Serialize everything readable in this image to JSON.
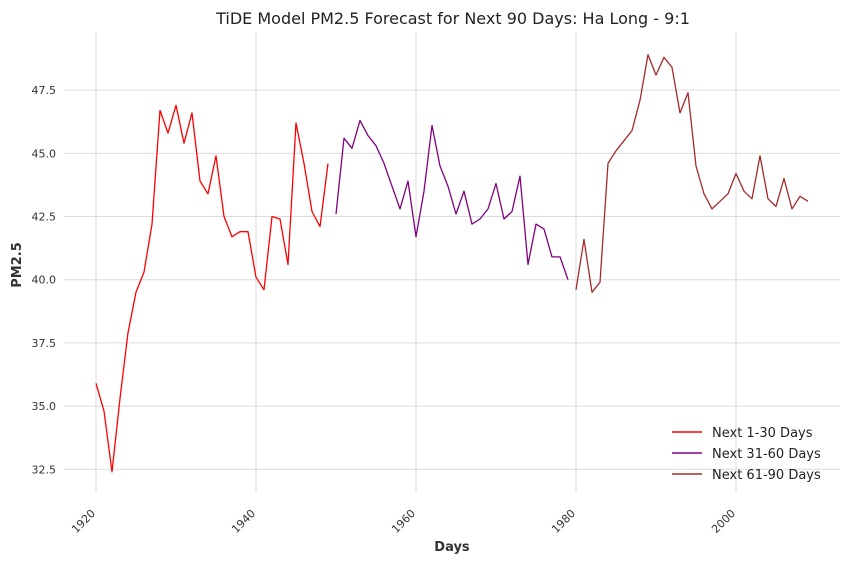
{
  "chart_data": {
    "type": "line",
    "title": "TiDE Model PM2.5 Forecast for Next 90 Days: Ha Long - 9:1",
    "xlabel": "Days",
    "ylabel": "PM2.5",
    "xlim": [
      1916,
      2013
    ],
    "ylim": [
      31.6,
      49.8
    ],
    "xticks": [
      1920,
      1940,
      1960,
      1980,
      2000
    ],
    "xtick_labels": [
      "1920",
      "1940",
      "1960",
      "1980",
      "2000"
    ],
    "yticks": [
      32.5,
      35.0,
      37.5,
      40.0,
      42.5,
      45.0,
      47.5
    ],
    "ytick_labels": [
      "32.5",
      "35.0",
      "37.5",
      "40.0",
      "42.5",
      "45.0",
      "47.5"
    ],
    "grid": true,
    "legend_position": "bottom-right",
    "series": [
      {
        "name": "Next 1-30 Days",
        "color": "#ff0000",
        "x": [
          1920,
          1921,
          1922,
          1923,
          1924,
          1925,
          1926,
          1927,
          1928,
          1929,
          1930,
          1931,
          1932,
          1933,
          1934,
          1935,
          1936,
          1937,
          1938,
          1939,
          1940,
          1941,
          1942,
          1943,
          1944,
          1945,
          1946,
          1947,
          1948,
          1949
        ],
        "y": [
          35.9,
          34.8,
          32.4,
          35.3,
          37.9,
          39.5,
          40.3,
          42.2,
          46.7,
          45.8,
          46.9,
          45.4,
          46.6,
          43.9,
          43.4,
          44.9,
          42.5,
          41.7,
          41.9,
          41.9,
          40.1,
          39.6,
          42.5,
          42.4,
          40.6,
          46.2,
          44.6,
          42.7,
          42.1,
          44.6
        ]
      },
      {
        "name": "Next 31-60 Days",
        "color": "#800080",
        "x": [
          1950,
          1951,
          1952,
          1953,
          1954,
          1955,
          1956,
          1957,
          1958,
          1959,
          1960,
          1961,
          1962,
          1963,
          1964,
          1965,
          1966,
          1967,
          1968,
          1969,
          1970,
          1971,
          1972,
          1973,
          1974,
          1975,
          1976,
          1977,
          1978,
          1979
        ],
        "y": [
          42.6,
          45.6,
          45.2,
          46.3,
          45.7,
          45.3,
          44.6,
          43.7,
          42.8,
          43.9,
          41.7,
          43.5,
          46.1,
          44.5,
          43.7,
          42.6,
          43.5,
          42.2,
          42.4,
          42.8,
          43.8,
          42.4,
          42.7,
          44.1,
          40.6,
          42.2,
          42.0,
          40.9,
          40.9,
          40.0
        ]
      },
      {
        "name": "Next 61-90 Days",
        "color": "#a52a2a",
        "x": [
          1980,
          1981,
          1982,
          1983,
          1984,
          1985,
          1986,
          1987,
          1988,
          1989,
          1990,
          1991,
          1992,
          1993,
          1994,
          1995,
          1996,
          1997,
          1998,
          1999,
          2000,
          2001,
          2002,
          2003,
          2004,
          2005,
          2006,
          2007,
          2008,
          2009
        ],
        "y": [
          39.6,
          41.6,
          39.5,
          39.9,
          44.6,
          45.1,
          45.5,
          45.9,
          47.1,
          48.9,
          48.1,
          48.8,
          48.4,
          46.6,
          47.4,
          44.5,
          43.4,
          42.8,
          43.1,
          43.4,
          44.2,
          43.5,
          43.2,
          44.9,
          43.2,
          42.9,
          44.0,
          42.8,
          43.3,
          43.1
        ]
      }
    ]
  }
}
